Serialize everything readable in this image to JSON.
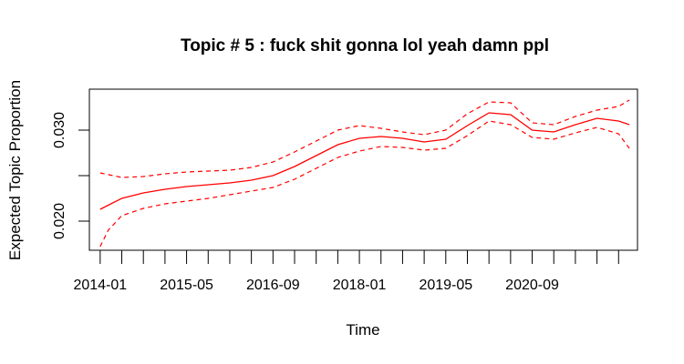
{
  "chart_data": {
    "type": "line",
    "title": "Topic # 5 :  fuck shit gonna lol yeah damn ppl",
    "xlabel": "Time",
    "ylabel": "Expected Topic Proportion",
    "x_tick_labels": [
      "2014-01",
      "2015-05",
      "2016-09",
      "2018-01",
      "2019-05",
      "2020-09"
    ],
    "x_tick_positions_months": [
      0,
      16,
      32,
      48,
      64,
      80
    ],
    "minor_tick_step_months": 4,
    "minor_tick_count": 25,
    "x_range_months": [
      -2,
      99.5
    ],
    "y_ticks": [
      0.02,
      0.025,
      0.03
    ],
    "y_tick_labels": [
      "0.020",
      "",
      "0.030"
    ],
    "ylim": [
      0.0168,
      0.0345
    ],
    "grid": false,
    "colors": {
      "series": "#ff0000",
      "axis": "#000000"
    },
    "series": [
      {
        "style": "solid",
        "x": [
          0,
          4,
          8,
          12,
          16,
          20,
          24,
          28,
          32,
          36,
          40,
          44,
          48,
          52,
          56,
          60,
          64,
          68,
          72,
          76,
          80,
          84,
          88,
          92,
          96,
          98
        ],
        "y": [
          0.0213,
          0.0225,
          0.0231,
          0.0235,
          0.0238,
          0.024,
          0.0242,
          0.0245,
          0.025,
          0.026,
          0.0272,
          0.0284,
          0.0291,
          0.0293,
          0.0291,
          0.0287,
          0.029,
          0.0305,
          0.0319,
          0.0317,
          0.03,
          0.0298,
          0.0306,
          0.0313,
          0.031,
          0.0306
        ]
      },
      {
        "style": "dashed",
        "x": [
          0,
          4,
          8,
          12,
          16,
          20,
          24,
          28,
          32,
          36,
          40,
          44,
          48,
          52,
          56,
          60,
          64,
          68,
          72,
          76,
          80,
          84,
          88,
          92,
          96,
          98
        ],
        "y": [
          0.0253,
          0.0248,
          0.0249,
          0.0252,
          0.0254,
          0.0255,
          0.0256,
          0.0259,
          0.0265,
          0.0276,
          0.0288,
          0.03,
          0.0305,
          0.0302,
          0.0298,
          0.0295,
          0.03,
          0.0318,
          0.0331,
          0.033,
          0.0308,
          0.0306,
          0.0315,
          0.0322,
          0.0326,
          0.0333
        ]
      },
      {
        "style": "dashed",
        "x": [
          0,
          1.5,
          4,
          8,
          12,
          16,
          20,
          24,
          28,
          32,
          36,
          40,
          44,
          48,
          52,
          56,
          60,
          64,
          68,
          72,
          76,
          80,
          84,
          88,
          92,
          96,
          98
        ],
        "y": [
          0.0172,
          0.019,
          0.0206,
          0.0214,
          0.0219,
          0.0222,
          0.0225,
          0.0229,
          0.0233,
          0.0237,
          0.0246,
          0.0258,
          0.027,
          0.0277,
          0.0282,
          0.0281,
          0.0278,
          0.028,
          0.0294,
          0.031,
          0.0306,
          0.0292,
          0.029,
          0.0297,
          0.0303,
          0.0296,
          0.028
        ]
      }
    ]
  }
}
